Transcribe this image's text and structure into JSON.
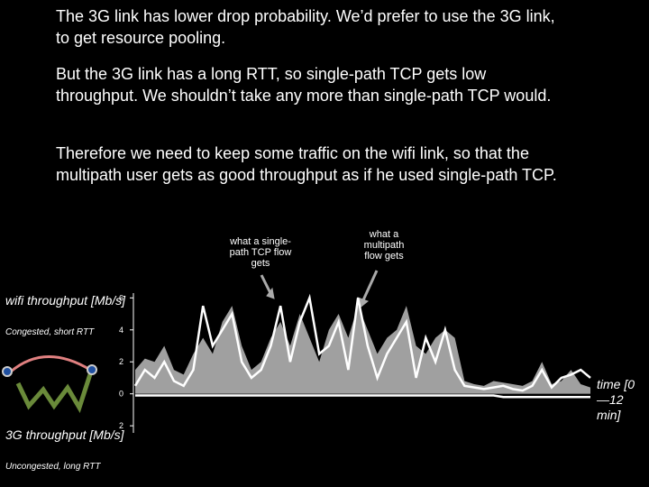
{
  "paragraphs": [
    "The 3G link has lower drop probability. We’d prefer to use the 3G link, to get resource pooling.",
    "But the 3G link has a long RTT, so single-path TCP gets low throughput. We shouldn’t take any more than single-path TCP would.",
    "Therefore we need to keep some traffic on the wifi link, so that the multipath user gets as good throughput as if he used single-path TCP."
  ],
  "annotations": {
    "single_path": "what a single-path TCP flow gets",
    "multipath": "what a multipath flow gets"
  },
  "labels": {
    "wifi": "wifi throughput [Mb/s]",
    "wifi_note": "Congested, short RTT",
    "g3": "3G throughput [Mb/s]",
    "g3_note": "Uncongested, long RTT",
    "time": "time [0 —12 min]"
  },
  "chart_data": {
    "type": "line",
    "ylim": [
      -2.5,
      6.3
    ],
    "yticks": [
      6,
      4,
      2,
      0,
      {
        "value": -2,
        "label": "2"
      }
    ],
    "series": [
      {
        "color": "#a0a0a0",
        "fill": true,
        "values": [
          1.5,
          2.2,
          2,
          3,
          1.5,
          1.2,
          2.5,
          3.5,
          2.5,
          4.5,
          5.5,
          3,
          1.5,
          2,
          3.5,
          4.5,
          3,
          5,
          3.5,
          2,
          4,
          5,
          3.5,
          5.5,
          4,
          2.5,
          3.5,
          4,
          5.5,
          3,
          2.5,
          3.5,
          4,
          3.5,
          0.8,
          0.6,
          0.5,
          0.8,
          0.7,
          0.6,
          0.5,
          0.8,
          2,
          0.6,
          0.8,
          1.5,
          0.6,
          0.4
        ]
      },
      {
        "color": "#ffffff",
        "values": [
          0.5,
          1.5,
          1,
          2,
          0.8,
          0.5,
          1.5,
          5.5,
          3,
          4,
          5,
          2,
          1,
          1.5,
          3,
          5.5,
          2,
          4.5,
          6,
          2.5,
          3,
          4.5,
          1.5,
          6,
          3,
          1,
          2.5,
          3.5,
          4.5,
          1,
          3.5,
          2,
          4,
          1.5,
          0.5,
          0.4,
          0.3,
          0.4,
          0.5,
          0.3,
          0.2,
          0.5,
          1.5,
          0.4,
          1,
          1.2,
          1.5,
          1
        ]
      },
      {
        "color": "#ffffff",
        "values": [
          -0.1,
          -0.1,
          -0.1,
          -0.1,
          -0.1,
          -0.1,
          -0.1,
          -0.1,
          -0.1,
          -0.1,
          -0.1,
          -0.1,
          -0.1,
          -0.1,
          -0.1,
          -0.1,
          -0.1,
          -0.1,
          -0.1,
          -0.1,
          -0.1,
          -0.1,
          -0.1,
          -0.1,
          -0.1,
          -0.1,
          -0.1,
          -0.1,
          -0.1,
          -0.1,
          -0.1,
          -0.1,
          -0.1,
          -0.1,
          -0.1,
          -0.1,
          -0.1,
          -0.1,
          -0.2,
          -0.2,
          -0.2,
          -0.2,
          -0.2,
          -0.2,
          -0.2,
          -0.2,
          -0.2,
          -0.2
        ]
      },
      {
        "color": "#000000",
        "values": [
          -0.3,
          -0.3,
          -0.3,
          -0.3,
          -0.3,
          -0.3,
          -0.3,
          -0.3,
          -0.3,
          -0.3,
          -0.3,
          -0.3,
          -0.3,
          -0.3,
          -0.3,
          -0.3,
          -0.3,
          -0.3,
          -0.3,
          -0.3,
          -0.3,
          -0.3,
          -0.3,
          -0.3,
          -0.3,
          -0.3,
          -0.3,
          -0.3,
          -0.3,
          -0.3,
          -0.3,
          -0.3,
          -0.3,
          -0.3,
          -0.3,
          -0.3,
          -0.3,
          -0.3,
          -0.5,
          -1,
          -0.8,
          -1.2,
          -0.9,
          -1,
          -1.1,
          -0.9,
          -1,
          -0.8
        ]
      }
    ]
  }
}
